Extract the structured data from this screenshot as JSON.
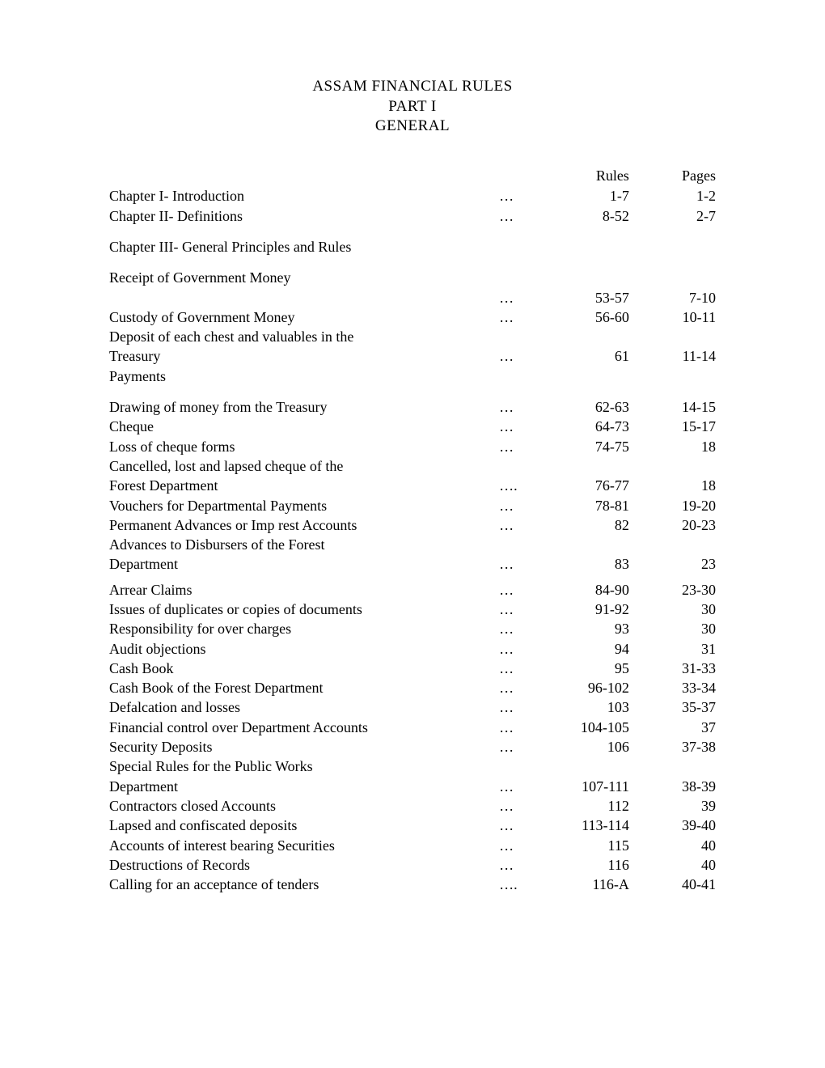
{
  "title": {
    "line1": "ASSAM FINANCIAL RULES",
    "line2": "PART I",
    "line3": "GENERAL"
  },
  "headers": {
    "rules": "Rules",
    "pages": "Pages"
  },
  "rows": [
    {
      "title": "Chapter I- Introduction",
      "dots": "…",
      "rules": "1-7",
      "pages": "1-2"
    },
    {
      "title": "Chapter II- Definitions",
      "dots": "…",
      "rules": "8-52",
      "pages": "2-7"
    },
    {
      "spacer": true
    },
    {
      "title": "Chapter III- General Principles and Rules",
      "dots": "",
      "rules": "",
      "pages": ""
    },
    {
      "spacer": true
    },
    {
      "title": "Receipt of Government Money",
      "dots": "",
      "rules": "",
      "pages": ""
    },
    {
      "title": "",
      "dots": "…",
      "rules": "53-57",
      "pages": "7-10"
    },
    {
      "title": "Custody of Government Money",
      "dots": "…",
      "rules": "56-60",
      "pages": "10-11"
    },
    {
      "title": "Deposit of each chest and valuables in the",
      "dots": "",
      "rules": "",
      "pages": ""
    },
    {
      "title": "Treasury",
      "dots": "…",
      "rules": "61",
      "pages": "11-14"
    },
    {
      "title": "Payments",
      "dots": "",
      "rules": "",
      "pages": ""
    },
    {
      "spacer": true
    },
    {
      "title": "Drawing of money from the Treasury",
      "dots": "…",
      "rules": "62-63",
      "pages": "14-15"
    },
    {
      "title": "Cheque",
      "dots": "…",
      "rules": "64-73",
      "pages": "15-17"
    },
    {
      "title": "Loss of cheque forms",
      "dots": "…",
      "rules": "74-75",
      "pages": "18"
    },
    {
      "title": "Cancelled, lost and lapsed cheque of the",
      "dots": "",
      "rules": "",
      "pages": ""
    },
    {
      "title": "Forest Department",
      "dots": "….",
      "rules": "76-77",
      "pages": "18"
    },
    {
      "title": "Vouchers for Departmental Payments",
      "dots": "…",
      "rules": "78-81",
      "pages": "19-20"
    },
    {
      "title": "Permanent Advances or Imp rest Accounts",
      "dots": "…",
      "rules": "82",
      "pages": "20-23"
    },
    {
      "title": "Advances to Disbursers of the Forest",
      "dots": "",
      "rules": "",
      "pages": ""
    },
    {
      "title": "Department",
      "dots": "…",
      "rules": "83",
      "pages": "23"
    },
    {
      "spacerHalf": true
    },
    {
      "title": "Arrear Claims",
      "dots": "…",
      "rules": "84-90",
      "pages": "23-30"
    },
    {
      "title": "Issues of duplicates or copies of documents",
      "dots": "…",
      "rules": "91-92",
      "pages": "30"
    },
    {
      "title": "Responsibility for over charges",
      "dots": "…",
      "rules": "93",
      "pages": "30"
    },
    {
      "title": "Audit objections",
      "dots": "…",
      "rules": "94",
      "pages": "31"
    },
    {
      "title": "Cash Book",
      "dots": "…",
      "rules": "95",
      "pages": "31-33"
    },
    {
      "title": "Cash Book of the Forest Department",
      "dots": "…",
      "rules": "96-102",
      "pages": "33-34"
    },
    {
      "title": "Defalcation and losses",
      "dots": "…",
      "rules": "103",
      "pages": "35-37"
    },
    {
      "title": "Financial control over Department Accounts",
      "dots": "…",
      "rules": "104-105",
      "pages": "37"
    },
    {
      "title": "Security Deposits",
      "dots": "…",
      "rules": "106",
      "pages": "37-38"
    },
    {
      "title": "Special Rules for the Public Works",
      "dots": "",
      "rules": "",
      "pages": ""
    },
    {
      "title": "Department",
      "dots": "…",
      "rules": "107-111",
      "pages": "38-39"
    },
    {
      "title": "Contractors closed Accounts",
      "dots": "…",
      "rules": "112",
      "pages": "39"
    },
    {
      "title": "Lapsed and confiscated deposits",
      "dots": "…",
      "rules": "113-114",
      "pages": "39-40"
    },
    {
      "title": "Accounts of interest bearing Securities",
      "dots": "…",
      "rules": "115",
      "pages": "40"
    },
    {
      "title": "Destructions of Records",
      "dots": "…",
      "rules": "116",
      "pages": "40"
    },
    {
      "title": "Calling for an acceptance of tenders",
      "dots": "….",
      "rules": "116-A",
      "pages": "40-41"
    }
  ]
}
